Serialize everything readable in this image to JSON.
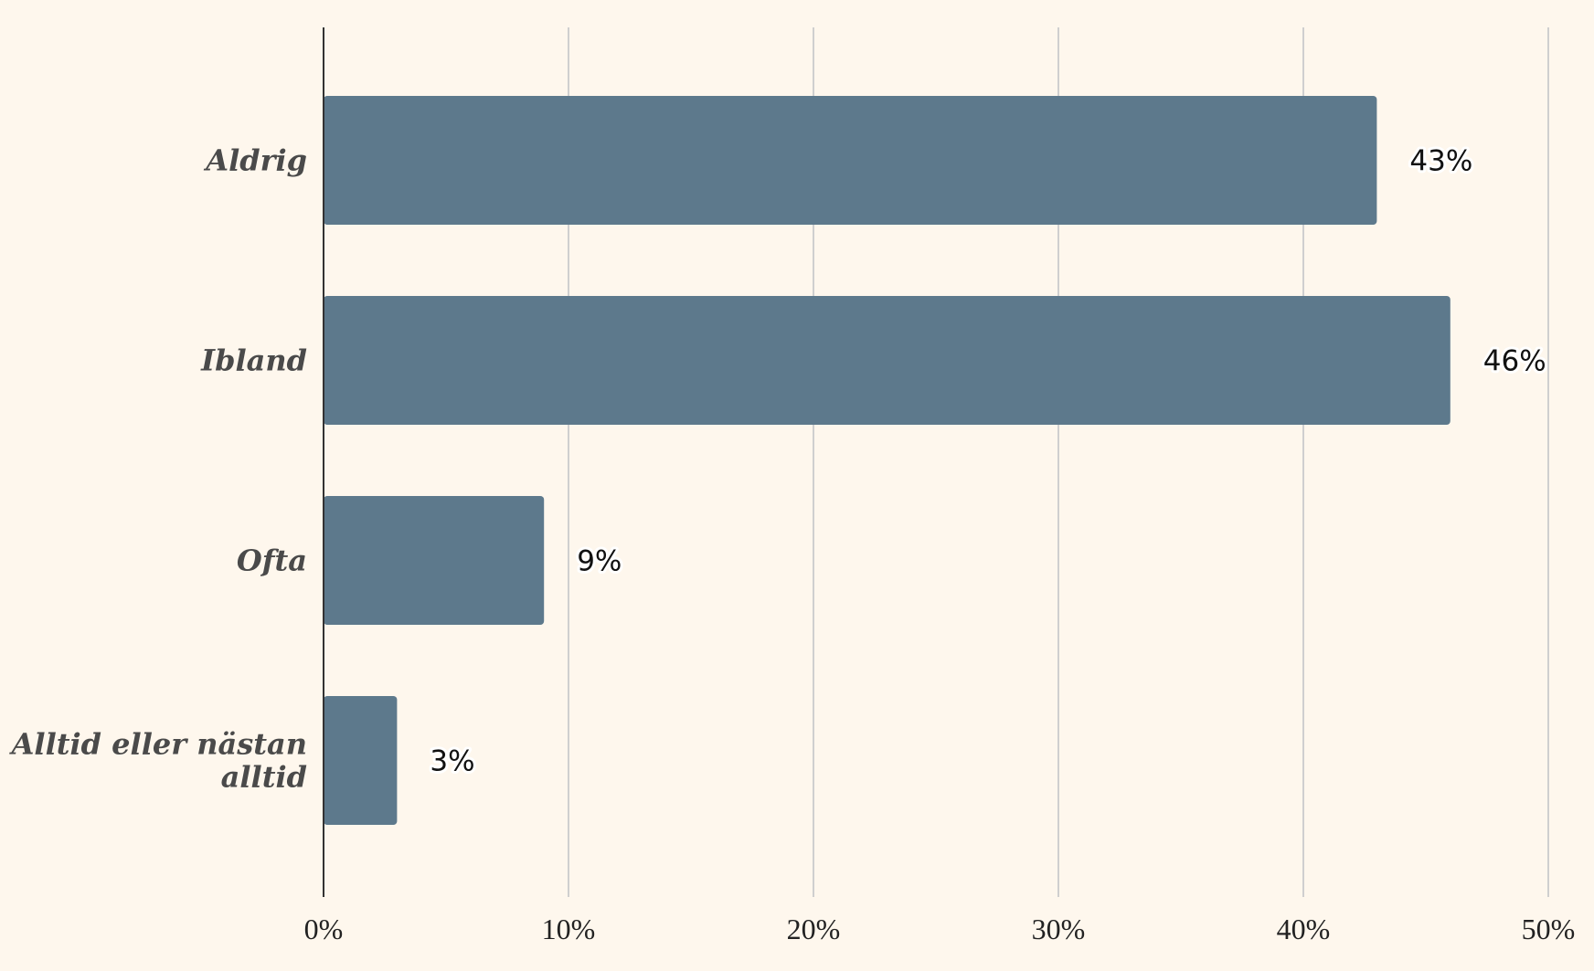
{
  "chart_data": {
    "type": "bar",
    "orientation": "horizontal",
    "categories": [
      "Aldrig",
      "Ibland",
      "Ofta",
      "Alltid eller nästan alltid"
    ],
    "category_label_lines": [
      [
        "Aldrig"
      ],
      [
        "Ibland"
      ],
      [
        "Ofta"
      ],
      [
        "Alltid eller nästan",
        "alltid"
      ]
    ],
    "values": [
      43,
      46,
      9,
      3
    ],
    "value_labels": [
      "43%",
      "46%",
      "9%",
      "3%"
    ],
    "xlim": [
      0,
      50
    ],
    "xticks": [
      0,
      10,
      20,
      30,
      40,
      50
    ],
    "xtick_labels": [
      "0%",
      "10%",
      "20%",
      "30%",
      "40%",
      "50%"
    ],
    "title": "",
    "xlabel": "",
    "ylabel": "",
    "grid": "vertical",
    "legend": "none",
    "colors": {
      "bar": "#5d798c",
      "background": "#fef7ed",
      "grid": "#cfcfcf",
      "axis": "#333333"
    }
  }
}
